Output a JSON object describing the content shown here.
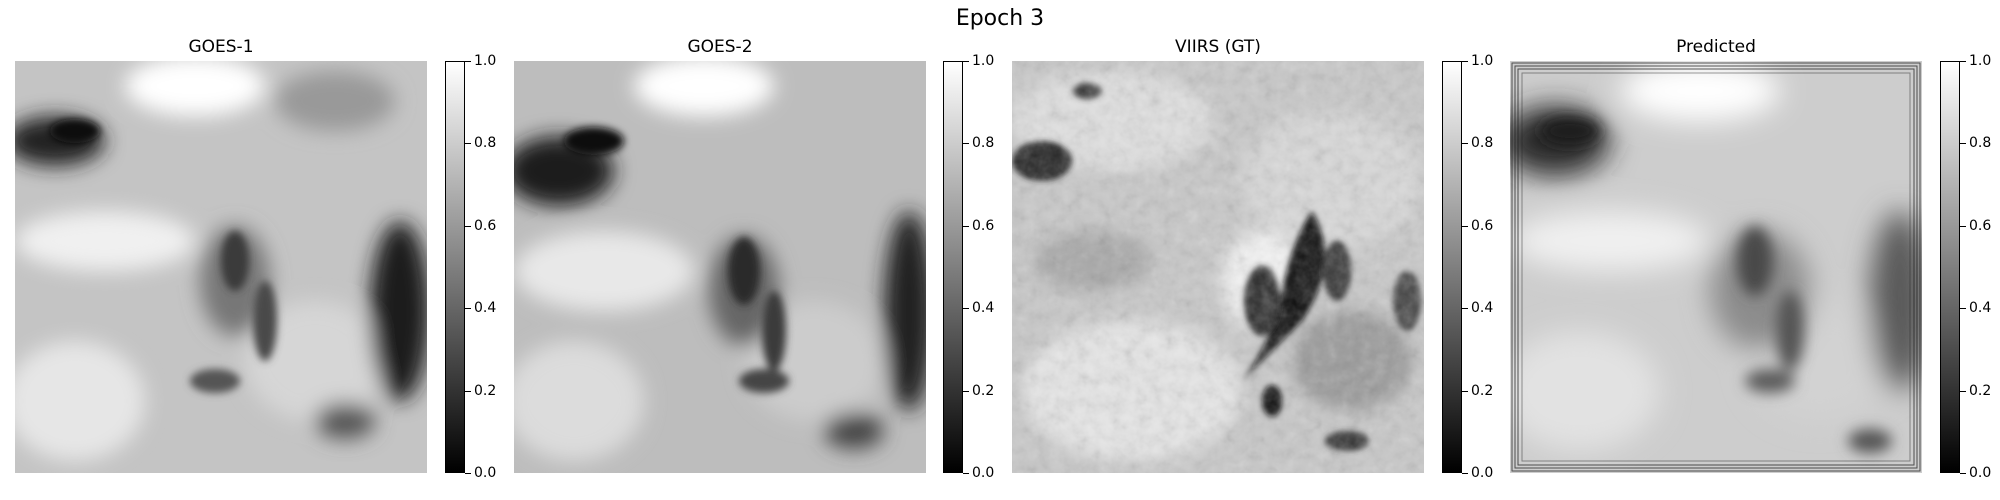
{
  "figure": {
    "title": "Epoch 3"
  },
  "panels": [
    {
      "title": "GOES-1"
    },
    {
      "title": "GOES-2"
    },
    {
      "title": "VIIRS (GT)"
    },
    {
      "title": "Predicted"
    }
  ],
  "colorbar": {
    "colormap": "gray",
    "range": [
      0.0,
      1.0
    ],
    "ticks": [
      "0.0",
      "0.2",
      "0.4",
      "0.6",
      "0.8",
      "1.0"
    ]
  }
}
